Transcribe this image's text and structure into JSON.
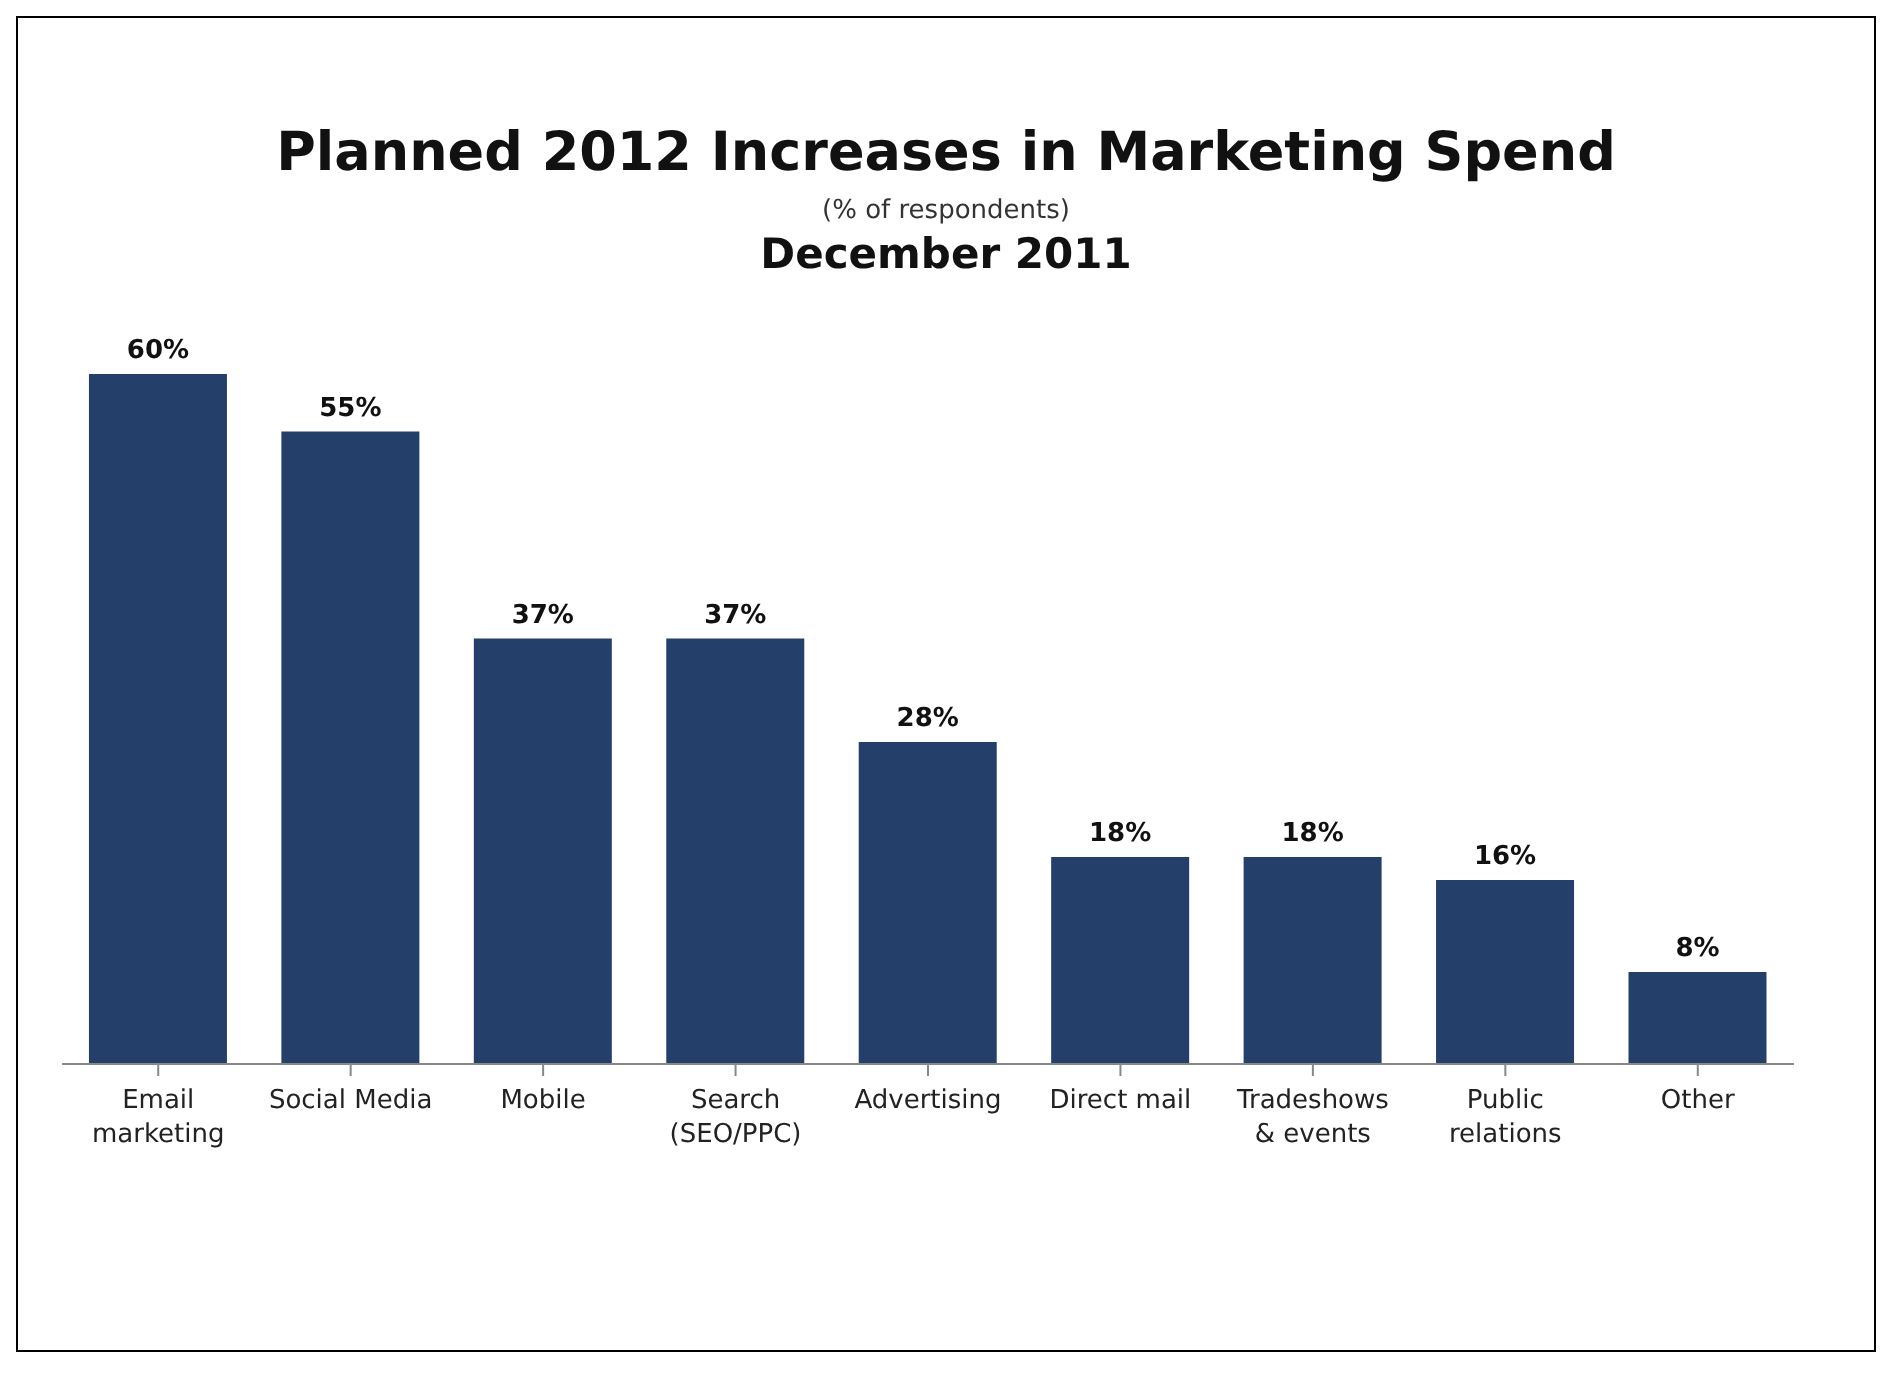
{
  "chart_data": {
    "type": "bar",
    "title": "Planned 2012 Increases in Marketing Spend",
    "subtitle": "(% of respondents)",
    "annotations": [
      "December 2011"
    ],
    "categories": [
      "Email marketing",
      "Social Media",
      "Mobile",
      "Search (SEO/PPC)",
      "Advertising",
      "Direct mail",
      "Tradeshows & events",
      "Public relations",
      "Other"
    ],
    "values": [
      60,
      55,
      37,
      37,
      28,
      18,
      18,
      16,
      8
    ],
    "color": "#253f6b",
    "value_labels": [
      "60%",
      "55%",
      "37%",
      "37%",
      "28%",
      "18%",
      "18%",
      "16%",
      "8%"
    ],
    "grid": false,
    "legend": false
  }
}
